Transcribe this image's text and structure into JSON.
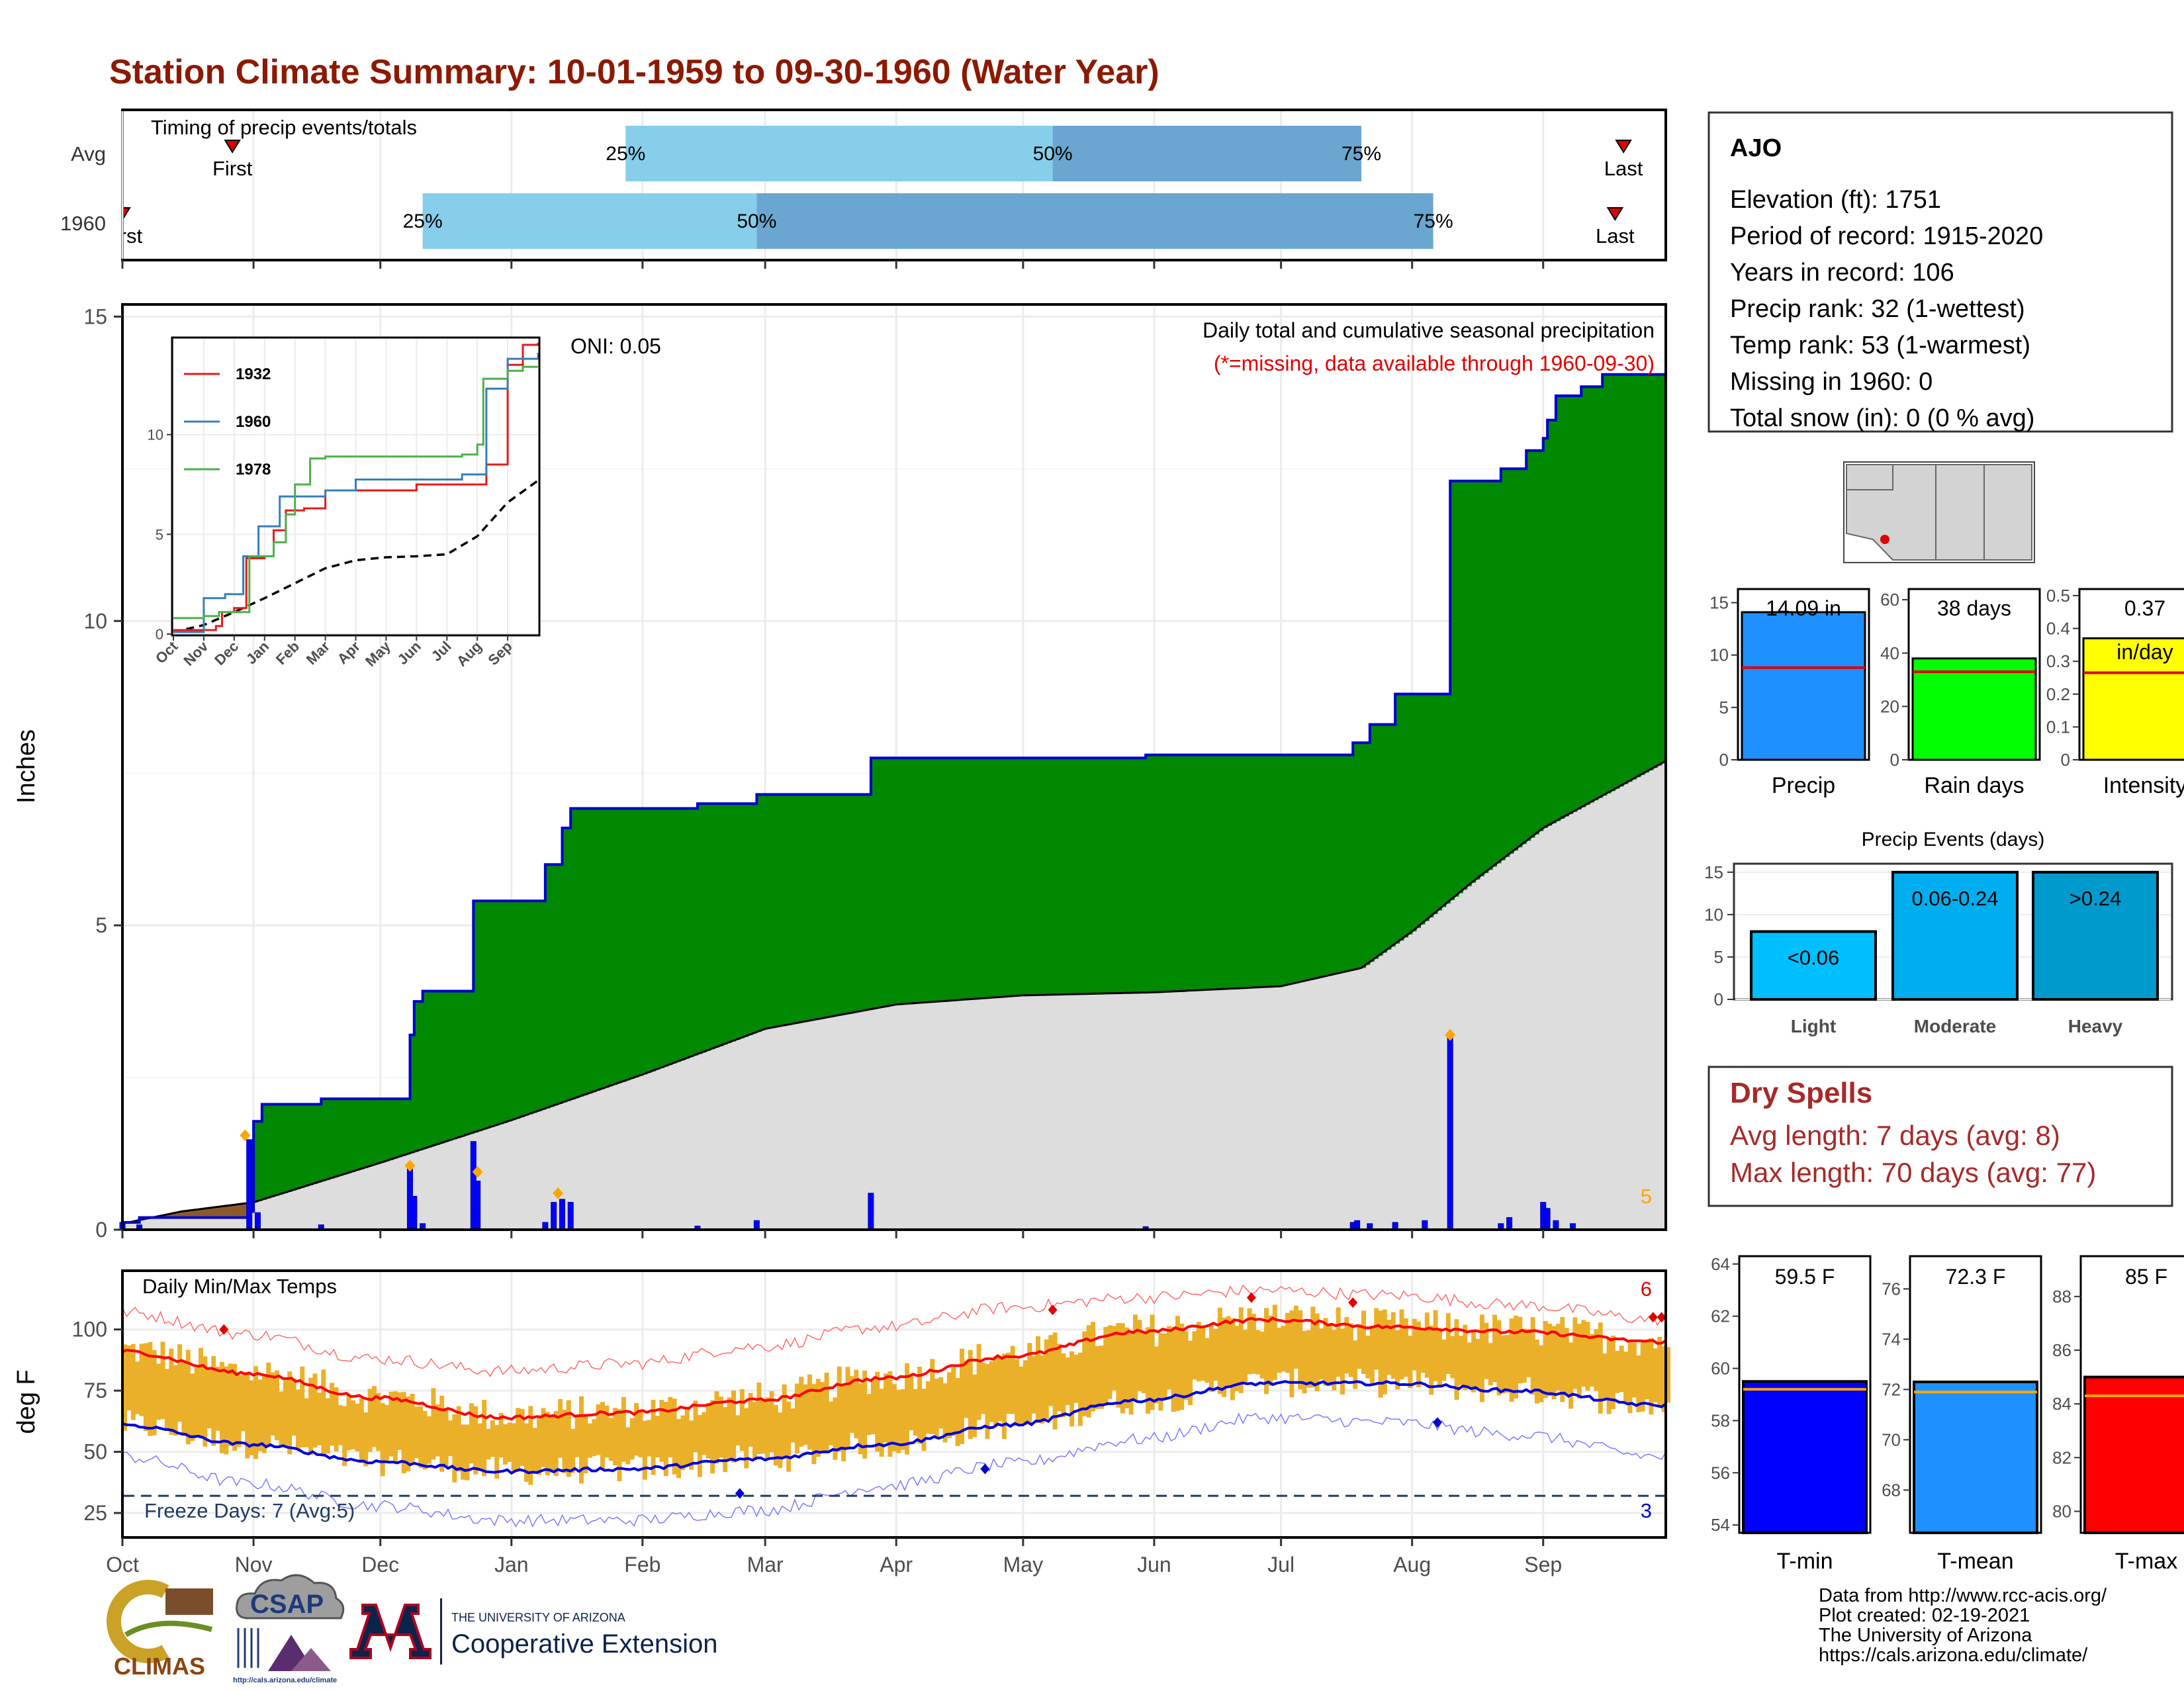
{
  "title": "Station Climate Summary: 10-01-1959 to 09-30-1960 (Water Year)",
  "colors": {
    "title": "#8B1A00",
    "green": "#008800",
    "blue_line": "#0000CC",
    "normal_fill": "#DDDDDD",
    "brown": "#8B5A2B",
    "light_blue": "#87CEEB",
    "mid_blue": "#6AA6CF",
    "orange": "#FFA500",
    "gold": "#EBB02A",
    "dry_red": "#A52A2A"
  },
  "timing": {
    "title": "Timing of precip events/totals",
    "rows": [
      {
        "label": "Avg",
        "first_label": "First",
        "first": "1959-10-27",
        "q25": "1960-01-28",
        "q50": "1960-05-08",
        "q75": "1960-07-20",
        "last_label": "Last",
        "last": "1960-09-20"
      },
      {
        "label": "1960",
        "first_label": "First",
        "first": "1959-10-01",
        "q25": "1959-12-11",
        "q50": "1960-02-28",
        "q75": "1960-08-06",
        "last_label": "Last",
        "last": "1960-09-18"
      }
    ],
    "pct_labels": [
      "25%",
      "50%",
      "75%"
    ]
  },
  "precip_chart": {
    "ylabel": "Inches",
    "yticks": [
      0,
      5,
      10,
      15
    ],
    "ylim": [
      0,
      15.2
    ],
    "oni": "ONI: 0.05",
    "subtitle": "Daily total and cumulative seasonal precipitation",
    "missing_note": "(*=missing, data available through 1960-09-30)",
    "corner_value": "5",
    "cumulative_1960": [
      [
        "1959-10-01",
        0.12
      ],
      [
        "1959-10-05",
        0.2
      ],
      [
        "1959-10-31",
        0.3
      ],
      [
        "1959-11-01",
        1.78
      ],
      [
        "1959-11-03",
        2.06
      ],
      [
        "1959-11-17",
        2.15
      ],
      [
        "1959-12-08",
        3.2
      ],
      [
        "1959-12-09",
        3.75
      ],
      [
        "1959-12-11",
        3.92
      ],
      [
        "1959-12-23",
        5.4
      ],
      [
        "1960-01-09",
        6.0
      ],
      [
        "1960-01-13",
        6.6
      ],
      [
        "1960-01-15",
        6.92
      ],
      [
        "1960-02-14",
        7.0
      ],
      [
        "1960-02-28",
        7.15
      ],
      [
        "1960-03-26",
        7.75
      ],
      [
        "1960-05-30",
        7.8
      ],
      [
        "1960-07-18",
        8.0
      ],
      [
        "1960-07-22",
        8.3
      ],
      [
        "1960-07-28",
        8.8
      ],
      [
        "1960-08-10",
        12.3
      ],
      [
        "1960-08-22",
        12.5
      ],
      [
        "1960-08-28",
        12.8
      ],
      [
        "1960-09-01",
        13.0
      ],
      [
        "1960-09-02",
        13.3
      ],
      [
        "1960-09-04",
        13.7
      ],
      [
        "1960-09-10",
        13.85
      ],
      [
        "1960-09-15",
        14.05
      ],
      [
        "1960-09-30",
        14.09
      ]
    ],
    "normal_cumulative": [
      [
        "1959-10-01",
        0.1
      ],
      [
        "1959-10-15",
        0.3
      ],
      [
        "1959-11-01",
        0.45
      ],
      [
        "1959-12-01",
        1.1
      ],
      [
        "1960-01-01",
        1.8
      ],
      [
        "1960-02-01",
        2.55
      ],
      [
        "1960-03-01",
        3.3
      ],
      [
        "1960-04-01",
        3.7
      ],
      [
        "1960-05-01",
        3.85
      ],
      [
        "1960-06-01",
        3.9
      ],
      [
        "1960-07-01",
        4.0
      ],
      [
        "1960-07-20",
        4.3
      ],
      [
        "1960-08-01",
        4.9
      ],
      [
        "1960-08-15",
        5.7
      ],
      [
        "1960-09-01",
        6.6
      ],
      [
        "1960-09-30",
        7.7
      ]
    ],
    "daily_bars": [
      [
        "1959-10-01",
        0.12
      ],
      [
        "1959-10-05",
        0.08
      ],
      [
        "1959-10-31",
        1.48
      ],
      [
        "1959-11-02",
        0.28
      ],
      [
        "1959-11-17",
        0.08
      ],
      [
        "1959-12-08",
        1.05
      ],
      [
        "1959-12-09",
        0.55
      ],
      [
        "1959-12-11",
        0.1
      ],
      [
        "1959-12-23",
        1.45
      ],
      [
        "1959-12-24",
        0.8
      ],
      [
        "1960-01-09",
        0.12
      ],
      [
        "1960-01-11",
        0.45
      ],
      [
        "1960-01-13",
        0.5
      ],
      [
        "1960-01-15",
        0.45
      ],
      [
        "1960-02-14",
        0.06
      ],
      [
        "1960-02-28",
        0.15
      ],
      [
        "1960-03-26",
        0.6
      ],
      [
        "1960-05-30",
        0.05
      ],
      [
        "1960-07-18",
        0.12
      ],
      [
        "1960-07-19",
        0.15
      ],
      [
        "1960-07-22",
        0.1
      ],
      [
        "1960-07-28",
        0.12
      ],
      [
        "1960-08-04",
        0.15
      ],
      [
        "1960-08-10",
        3.2
      ],
      [
        "1960-08-22",
        0.1
      ],
      [
        "1960-08-24",
        0.2
      ],
      [
        "1960-09-01",
        0.45
      ],
      [
        "1960-09-02",
        0.35
      ],
      [
        "1960-09-04",
        0.15
      ],
      [
        "1960-09-08",
        0.1
      ]
    ],
    "record_markers": [
      [
        "1959-10-30",
        1.55
      ],
      [
        "1959-12-08",
        1.05
      ],
      [
        "1959-12-24",
        0.95
      ],
      [
        "1960-01-12",
        0.6
      ],
      [
        "1960-08-10",
        3.2
      ]
    ]
  },
  "inset": {
    "yticks": [
      0,
      5,
      10
    ],
    "ylim": [
      0,
      14.8
    ],
    "months": [
      "Oct",
      "Nov",
      "Dec",
      "Jan",
      "Feb",
      "Mar",
      "Apr",
      "May",
      "Jun",
      "Jul",
      "Aug",
      "Sep"
    ],
    "series": [
      {
        "name": "1932",
        "color": "#E41A1C",
        "points": [
          [
            0,
            0.2
          ],
          [
            1.4,
            0.4
          ],
          [
            1.6,
            1.1
          ],
          [
            2.0,
            1.3
          ],
          [
            2.4,
            3.8
          ],
          [
            3.0,
            3.9
          ],
          [
            3.3,
            5.2
          ],
          [
            3.7,
            6.2
          ],
          [
            4.3,
            6.3
          ],
          [
            5.0,
            7.2
          ],
          [
            8.0,
            7.5
          ],
          [
            10.0,
            7.5
          ],
          [
            10.3,
            8.5
          ],
          [
            11.0,
            13.5
          ],
          [
            11.5,
            14.5
          ],
          [
            12.0,
            14.6
          ]
        ]
      },
      {
        "name": "1960",
        "color": "#377EB8",
        "points": [
          [
            0,
            0.1
          ],
          [
            1.0,
            1.8
          ],
          [
            1.7,
            2.0
          ],
          [
            2.3,
            3.9
          ],
          [
            2.8,
            5.4
          ],
          [
            3.5,
            6.9
          ],
          [
            5.0,
            7.2
          ],
          [
            6.0,
            7.75
          ],
          [
            9.5,
            8.0
          ],
          [
            10.3,
            12.3
          ],
          [
            11.0,
            13.8
          ],
          [
            12.0,
            14.09
          ]
        ]
      },
      {
        "name": "1978",
        "color": "#4DAF4A",
        "points": [
          [
            0,
            0.8
          ],
          [
            1.0,
            0.9
          ],
          [
            1.5,
            1.1
          ],
          [
            2.5,
            3.9
          ],
          [
            3.3,
            4.6
          ],
          [
            3.7,
            6.0
          ],
          [
            4.0,
            7.5
          ],
          [
            4.5,
            8.8
          ],
          [
            5.0,
            8.9
          ],
          [
            9.5,
            9.0
          ],
          [
            10.0,
            9.5
          ],
          [
            10.2,
            12.8
          ],
          [
            11.0,
            13.2
          ],
          [
            11.5,
            13.4
          ],
          [
            12.0,
            13.4
          ]
        ]
      }
    ],
    "normal_points": [
      [
        0,
        0.1
      ],
      [
        1,
        0.45
      ],
      [
        2,
        1.1
      ],
      [
        3,
        1.8
      ],
      [
        4,
        2.55
      ],
      [
        5,
        3.3
      ],
      [
        6,
        3.7
      ],
      [
        7,
        3.85
      ],
      [
        8,
        3.9
      ],
      [
        9,
        4.0
      ],
      [
        10,
        4.9
      ],
      [
        11,
        6.6
      ],
      [
        12,
        7.7
      ]
    ]
  },
  "temp_chart": {
    "title": "Daily Min/Max Temps",
    "ylabel": "deg F",
    "yticks": [
      25,
      50,
      75,
      100
    ],
    "ylim": [
      15,
      124
    ],
    "freeze_line": 32,
    "freeze_text": "Freeze Days: 7 (Avg:5)",
    "record_high_count": "6",
    "record_low_count": "3",
    "normal_max": [
      [
        0,
        91
      ],
      [
        30,
        82
      ],
      [
        60,
        72
      ],
      [
        90,
        64
      ],
      [
        120,
        66
      ],
      [
        150,
        71
      ],
      [
        180,
        80
      ],
      [
        210,
        89
      ],
      [
        240,
        99
      ],
      [
        270,
        104
      ],
      [
        300,
        101
      ],
      [
        330,
        99
      ],
      [
        364,
        95
      ]
    ],
    "normal_min": [
      [
        0,
        61
      ],
      [
        30,
        53
      ],
      [
        60,
        46
      ],
      [
        90,
        42
      ],
      [
        120,
        43
      ],
      [
        150,
        47
      ],
      [
        180,
        53
      ],
      [
        210,
        61
      ],
      [
        240,
        71
      ],
      [
        270,
        78
      ],
      [
        300,
        78
      ],
      [
        330,
        75
      ],
      [
        364,
        69
      ]
    ],
    "record_max": [
      [
        0,
        107
      ],
      [
        30,
        98
      ],
      [
        60,
        88
      ],
      [
        90,
        83
      ],
      [
        120,
        86
      ],
      [
        150,
        93
      ],
      [
        180,
        101
      ],
      [
        210,
        109
      ],
      [
        240,
        113
      ],
      [
        270,
        116
      ],
      [
        300,
        114
      ],
      [
        330,
        110
      ],
      [
        364,
        104
      ]
    ],
    "record_min": [
      [
        0,
        48
      ],
      [
        30,
        37
      ],
      [
        60,
        28
      ],
      [
        90,
        22
      ],
      [
        120,
        22
      ],
      [
        150,
        26
      ],
      [
        180,
        36
      ],
      [
        210,
        45
      ],
      [
        240,
        55
      ],
      [
        270,
        64
      ],
      [
        300,
        62
      ],
      [
        330,
        57
      ],
      [
        364,
        48
      ]
    ],
    "record_high_points": [
      [
        24,
        100
      ],
      [
        220,
        108
      ],
      [
        267,
        113
      ],
      [
        291,
        111
      ],
      [
        362,
        105
      ],
      [
        364,
        105
      ]
    ],
    "record_low_points": [
      [
        146,
        33
      ],
      [
        204,
        43
      ],
      [
        311,
        62
      ]
    ]
  },
  "x_months": [
    "Oct",
    "Nov",
    "Dec",
    "Jan",
    "Feb",
    "Mar",
    "Apr",
    "May",
    "Jun",
    "Jul",
    "Aug",
    "Sep"
  ],
  "station": {
    "name": "AJO",
    "lines": [
      "Elevation (ft): 1751",
      "Period of record: 1915-2020",
      "Years in record: 106",
      "Precip rank: 32 (1-wettest)",
      "Temp rank: 53 (1-warmest)",
      "Missing in 1960: 0",
      "Total snow (in): 0 (0 % avg)"
    ]
  },
  "mini_bars": [
    {
      "xlabel": "Precip",
      "value": 14.09,
      "value_label": "14.09 in",
      "avg": 8.8,
      "ymax": 16.3,
      "yticks": [
        0,
        5,
        10,
        15
      ],
      "color": "#1E90FF"
    },
    {
      "xlabel": "Rain days",
      "value": 38,
      "value_label": "38 days",
      "avg": 33,
      "ymax": 64,
      "yticks": [
        0,
        20,
        40,
        60
      ],
      "color": "#00FF00"
    },
    {
      "xlabel": "Intensity",
      "value": 0.37,
      "value_label": "0.37",
      "unit_label": "in/day",
      "avg": 0.265,
      "ymax": 0.52,
      "yticks": [
        0.0,
        0.1,
        0.2,
        0.3,
        0.4,
        0.5
      ],
      "color": "#FFFF00"
    }
  ],
  "events": {
    "title": "Precip Events (days)",
    "ymax": 16,
    "yticks": [
      0,
      5,
      10,
      15
    ],
    "bars": [
      {
        "label": "Light",
        "value": 8,
        "text": "<0.06",
        "color": "#00BFFF"
      },
      {
        "label": "Moderate",
        "value": 15,
        "text": "0.06-0.24",
        "color": "#00AEEF"
      },
      {
        "label": "Heavy",
        "value": 15,
        "text": ">0.24",
        "color": "#009ACD"
      }
    ]
  },
  "dry_spells": {
    "title": "Dry Spells",
    "lines": [
      "Avg length: 7 days (avg: 8)",
      "Max length: 70 days (avg: 77)"
    ]
  },
  "temp_bars": [
    {
      "xlabel": "T-min",
      "value": 59.5,
      "value_label": "59.5 F",
      "avg": 59.2,
      "ymin": 53.7,
      "ymax": 64.3,
      "yticks": [
        54,
        56,
        58,
        60,
        62,
        64
      ],
      "color": "#0000FF"
    },
    {
      "xlabel": "T-mean",
      "value": 72.3,
      "value_label": "72.3 F",
      "avg": 71.9,
      "ymin": 66.3,
      "ymax": 77.3,
      "yticks": [
        68,
        70,
        72,
        74,
        76
      ],
      "color": "#1E90FF"
    },
    {
      "xlabel": "T-max",
      "value": 85,
      "value_label": "85 F",
      "avg": 84.3,
      "ymin": 79.2,
      "ymax": 89.5,
      "yticks": [
        80,
        82,
        84,
        86,
        88
      ],
      "color": "#FF0000"
    }
  ],
  "footer": {
    "lines": [
      "Data from http://www.rcc-acis.org/",
      "Plot created: 02-19-2021",
      "The University of Arizona",
      "https://cals.arizona.edu/climate/"
    ],
    "logo_climas": "CLIMAS",
    "logo_csap": "CSAP",
    "logo_csap_url": "http://cals.arizona.edu/climate",
    "logo_ua_top": "THE UNIVERSITY OF ARIZONA",
    "logo_ua_bottom": "Cooperative Extension"
  }
}
